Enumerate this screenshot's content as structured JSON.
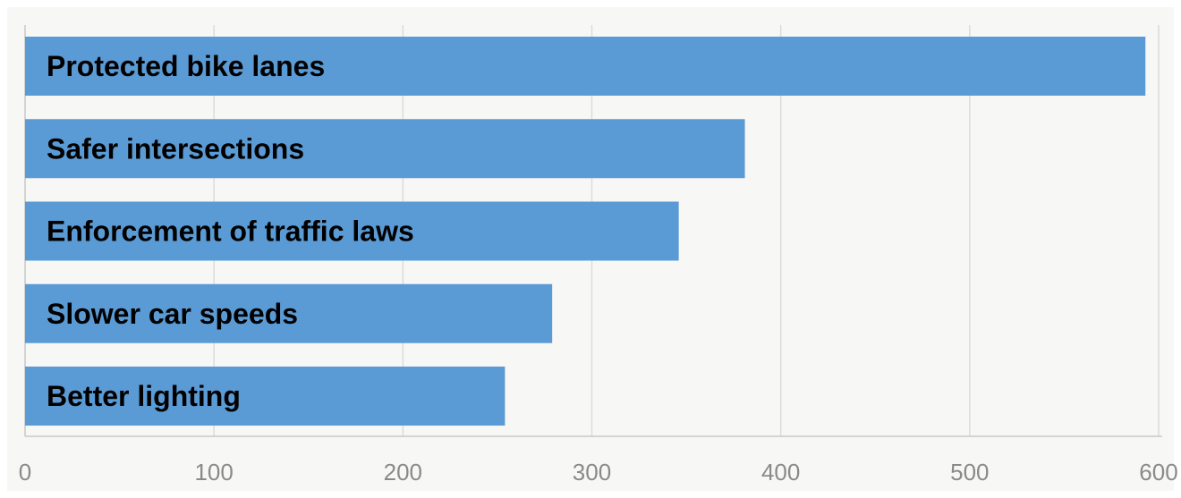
{
  "chart_data": {
    "type": "bar",
    "orientation": "horizontal",
    "categories": [
      "Protected bike lanes",
      "Safer intersections",
      "Enforcement of traffic laws",
      "Slower car speeds",
      "Better lighting"
    ],
    "values": [
      593,
      381,
      346,
      279,
      254
    ],
    "xlim": [
      0,
      600
    ],
    "xticks": [
      "0",
      "100",
      "200",
      "300",
      "400",
      "500",
      "600"
    ],
    "title": "",
    "xlabel": "",
    "ylabel": "",
    "grid": true,
    "legend": "none",
    "colors": {
      "bar": "#5b9bd5",
      "background": "#f7f7f5",
      "grid": "#dcdcdc",
      "axis": "#c8c8c8",
      "tick_text": "#8a8a8a",
      "label_text": "#000000"
    }
  }
}
